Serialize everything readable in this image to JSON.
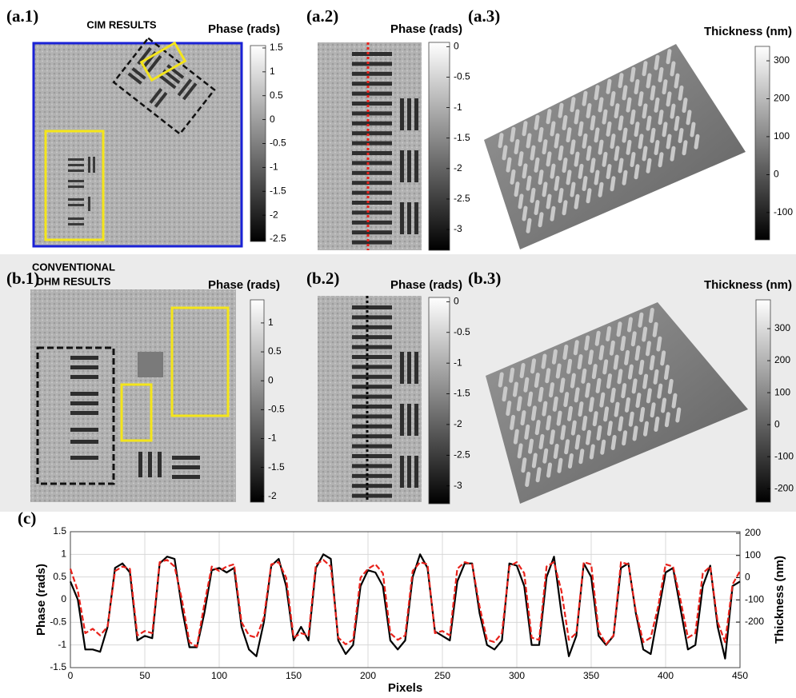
{
  "panels": [
    {
      "label": "(a.1)",
      "title_lines": [
        "CIM RESULTS"
      ],
      "colorbar": {
        "label": "Phase (rads)",
        "lim": [
          -2.55,
          1.55
        ],
        "ticks": [
          1.5,
          1,
          0.5,
          0,
          -0.5,
          -1,
          -1.5,
          -2,
          -2.5
        ]
      }
    },
    {
      "label": "(a.2)",
      "colorbar": {
        "label": "Phase (rads)",
        "lim": [
          -3.34,
          0.07
        ],
        "ticks": [
          0,
          -0.5,
          -1,
          -1.5,
          -2,
          -2.5,
          -3
        ]
      }
    },
    {
      "label": "(a.3)",
      "colorbar": {
        "label": "Thickness (nm)",
        "lim": [
          -172,
          338
        ],
        "ticks": [
          300,
          200,
          100,
          0,
          -100
        ]
      }
    },
    {
      "label": "(b.1)",
      "title_lines": [
        "CONVENTIONAL",
        "DHM RESULTS"
      ],
      "colorbar": {
        "label": "Phase (rads)",
        "lim": [
          -2.1,
          1.4
        ],
        "ticks": [
          1,
          0.5,
          0,
          -0.5,
          -1,
          -1.5,
          -2
        ]
      }
    },
    {
      "label": "(b.2)",
      "colorbar": {
        "label": "Phase (rads)",
        "lim": [
          -3.29,
          0.07
        ],
        "ticks": [
          0,
          -0.5,
          -1,
          -1.5,
          -2,
          -2.5,
          -3
        ]
      }
    },
    {
      "label": "(b.3)",
      "colorbar": {
        "label": "Thickness (nm)",
        "lim": [
          -242,
          390
        ],
        "ticks": [
          300,
          200,
          100,
          0,
          -100,
          -200
        ]
      }
    }
  ],
  "chart_data": {
    "type": "line",
    "label": "(c)",
    "xlabel": "Pixels",
    "ylabel": "Phase (rads)",
    "y2label": "Thickness (nm)",
    "grid": true,
    "x": [
      0,
      5,
      10,
      15,
      20,
      25,
      30,
      35,
      40,
      45,
      50,
      55,
      60,
      65,
      70,
      75,
      80,
      85,
      90,
      95,
      100,
      105,
      110,
      115,
      120,
      125,
      130,
      135,
      140,
      145,
      150,
      155,
      160,
      165,
      170,
      175,
      180,
      185,
      190,
      195,
      200,
      205,
      210,
      215,
      220,
      225,
      230,
      235,
      240,
      245,
      250,
      255,
      260,
      265,
      270,
      275,
      280,
      285,
      290,
      295,
      300,
      305,
      310,
      315,
      320,
      325,
      330,
      335,
      340,
      345,
      350,
      355,
      360,
      365,
      370,
      375,
      380,
      385,
      390,
      395,
      400,
      405,
      410,
      415,
      420,
      425,
      430,
      435,
      440,
      445,
      450
    ],
    "series": [
      {
        "color": "#000000",
        "line_style": "solid",
        "values": [
          0.4,
          0.0,
          -1.1,
          -1.1,
          -1.15,
          -0.6,
          0.7,
          0.8,
          0.6,
          -0.9,
          -0.8,
          -0.85,
          0.8,
          0.95,
          0.9,
          -0.2,
          -1.05,
          -1.05,
          -0.3,
          0.65,
          0.7,
          0.6,
          0.7,
          -0.6,
          -1.1,
          -1.25,
          -0.5,
          0.75,
          0.9,
          0.3,
          -0.9,
          -0.6,
          -0.9,
          0.7,
          1.0,
          0.9,
          -0.9,
          -1.2,
          -1.0,
          0.3,
          0.65,
          0.6,
          0.3,
          -0.9,
          -1.1,
          -0.9,
          0.5,
          1.0,
          0.7,
          -0.7,
          -0.8,
          -0.9,
          0.4,
          0.8,
          0.8,
          -0.3,
          -1.0,
          -1.1,
          -0.9,
          0.8,
          0.75,
          0.3,
          -1.0,
          -1.0,
          0.5,
          0.95,
          -0.3,
          -1.25,
          -0.8,
          0.8,
          0.5,
          -0.8,
          -1.0,
          -0.8,
          0.7,
          0.8,
          -0.3,
          -1.1,
          -1.2,
          -0.3,
          0.6,
          0.7,
          -0.2,
          -1.1,
          -1.0,
          0.3,
          0.75,
          -0.6,
          -1.3,
          0.3,
          0.4
        ]
      },
      {
        "color": "#e8221b",
        "line_style": "dashed",
        "axis": "y2",
        "values": [
          40,
          -60,
          -250,
          -230,
          -260,
          -220,
          30,
          50,
          40,
          -260,
          -240,
          -250,
          70,
          80,
          50,
          -100,
          -290,
          -310,
          -120,
          50,
          30,
          50,
          60,
          -200,
          -260,
          -270,
          -180,
          60,
          70,
          0,
          -270,
          -250,
          -260,
          60,
          80,
          50,
          -270,
          -300,
          -280,
          0,
          40,
          60,
          20,
          -250,
          -280,
          -260,
          30,
          70,
          60,
          -250,
          -240,
          -260,
          40,
          70,
          60,
          -130,
          -280,
          -290,
          -250,
          50,
          70,
          20,
          -270,
          -280,
          50,
          70,
          -60,
          -280,
          -250,
          70,
          60,
          -240,
          -300,
          -260,
          70,
          60,
          -150,
          -290,
          -270,
          -130,
          60,
          50,
          -100,
          -270,
          -250,
          20,
          50,
          -200,
          -290,
          -30,
          30
        ]
      }
    ],
    "xlim": [
      0,
      450
    ],
    "xticks": [
      0,
      50,
      100,
      150,
      200,
      250,
      300,
      350,
      400,
      450
    ],
    "ylim": [
      -1.5,
      1.5
    ],
    "yticks": [
      -1.5,
      -1,
      -0.5,
      0,
      0.5,
      1,
      1.5
    ],
    "y2lim": [
      -405,
      207
    ],
    "y2ticks": [
      -200,
      -100,
      0,
      100,
      200
    ]
  }
}
